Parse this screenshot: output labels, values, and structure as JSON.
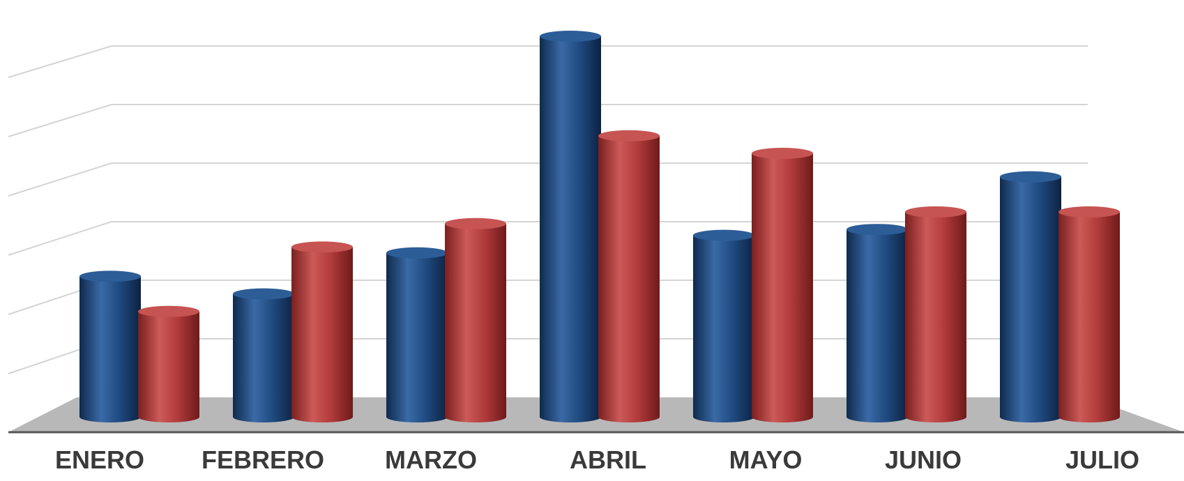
{
  "chart_data": {
    "type": "bar",
    "style": "3d-cylinder",
    "categories": [
      "ENERO",
      "FEBRERO",
      "MARZO",
      "ABRIL",
      "MAYO",
      "JUNIO",
      "JULIO"
    ],
    "series": [
      {
        "color": "#1f4a80",
        "values": [
          2.4,
          2.1,
          2.8,
          6.5,
          3.1,
          3.2,
          4.1
        ]
      },
      {
        "color": "#b03a3a",
        "values": [
          1.8,
          2.9,
          3.3,
          4.8,
          4.5,
          3.5,
          3.5
        ]
      }
    ],
    "ylim": [
      0,
      7
    ],
    "grid": true,
    "legend": "none"
  }
}
